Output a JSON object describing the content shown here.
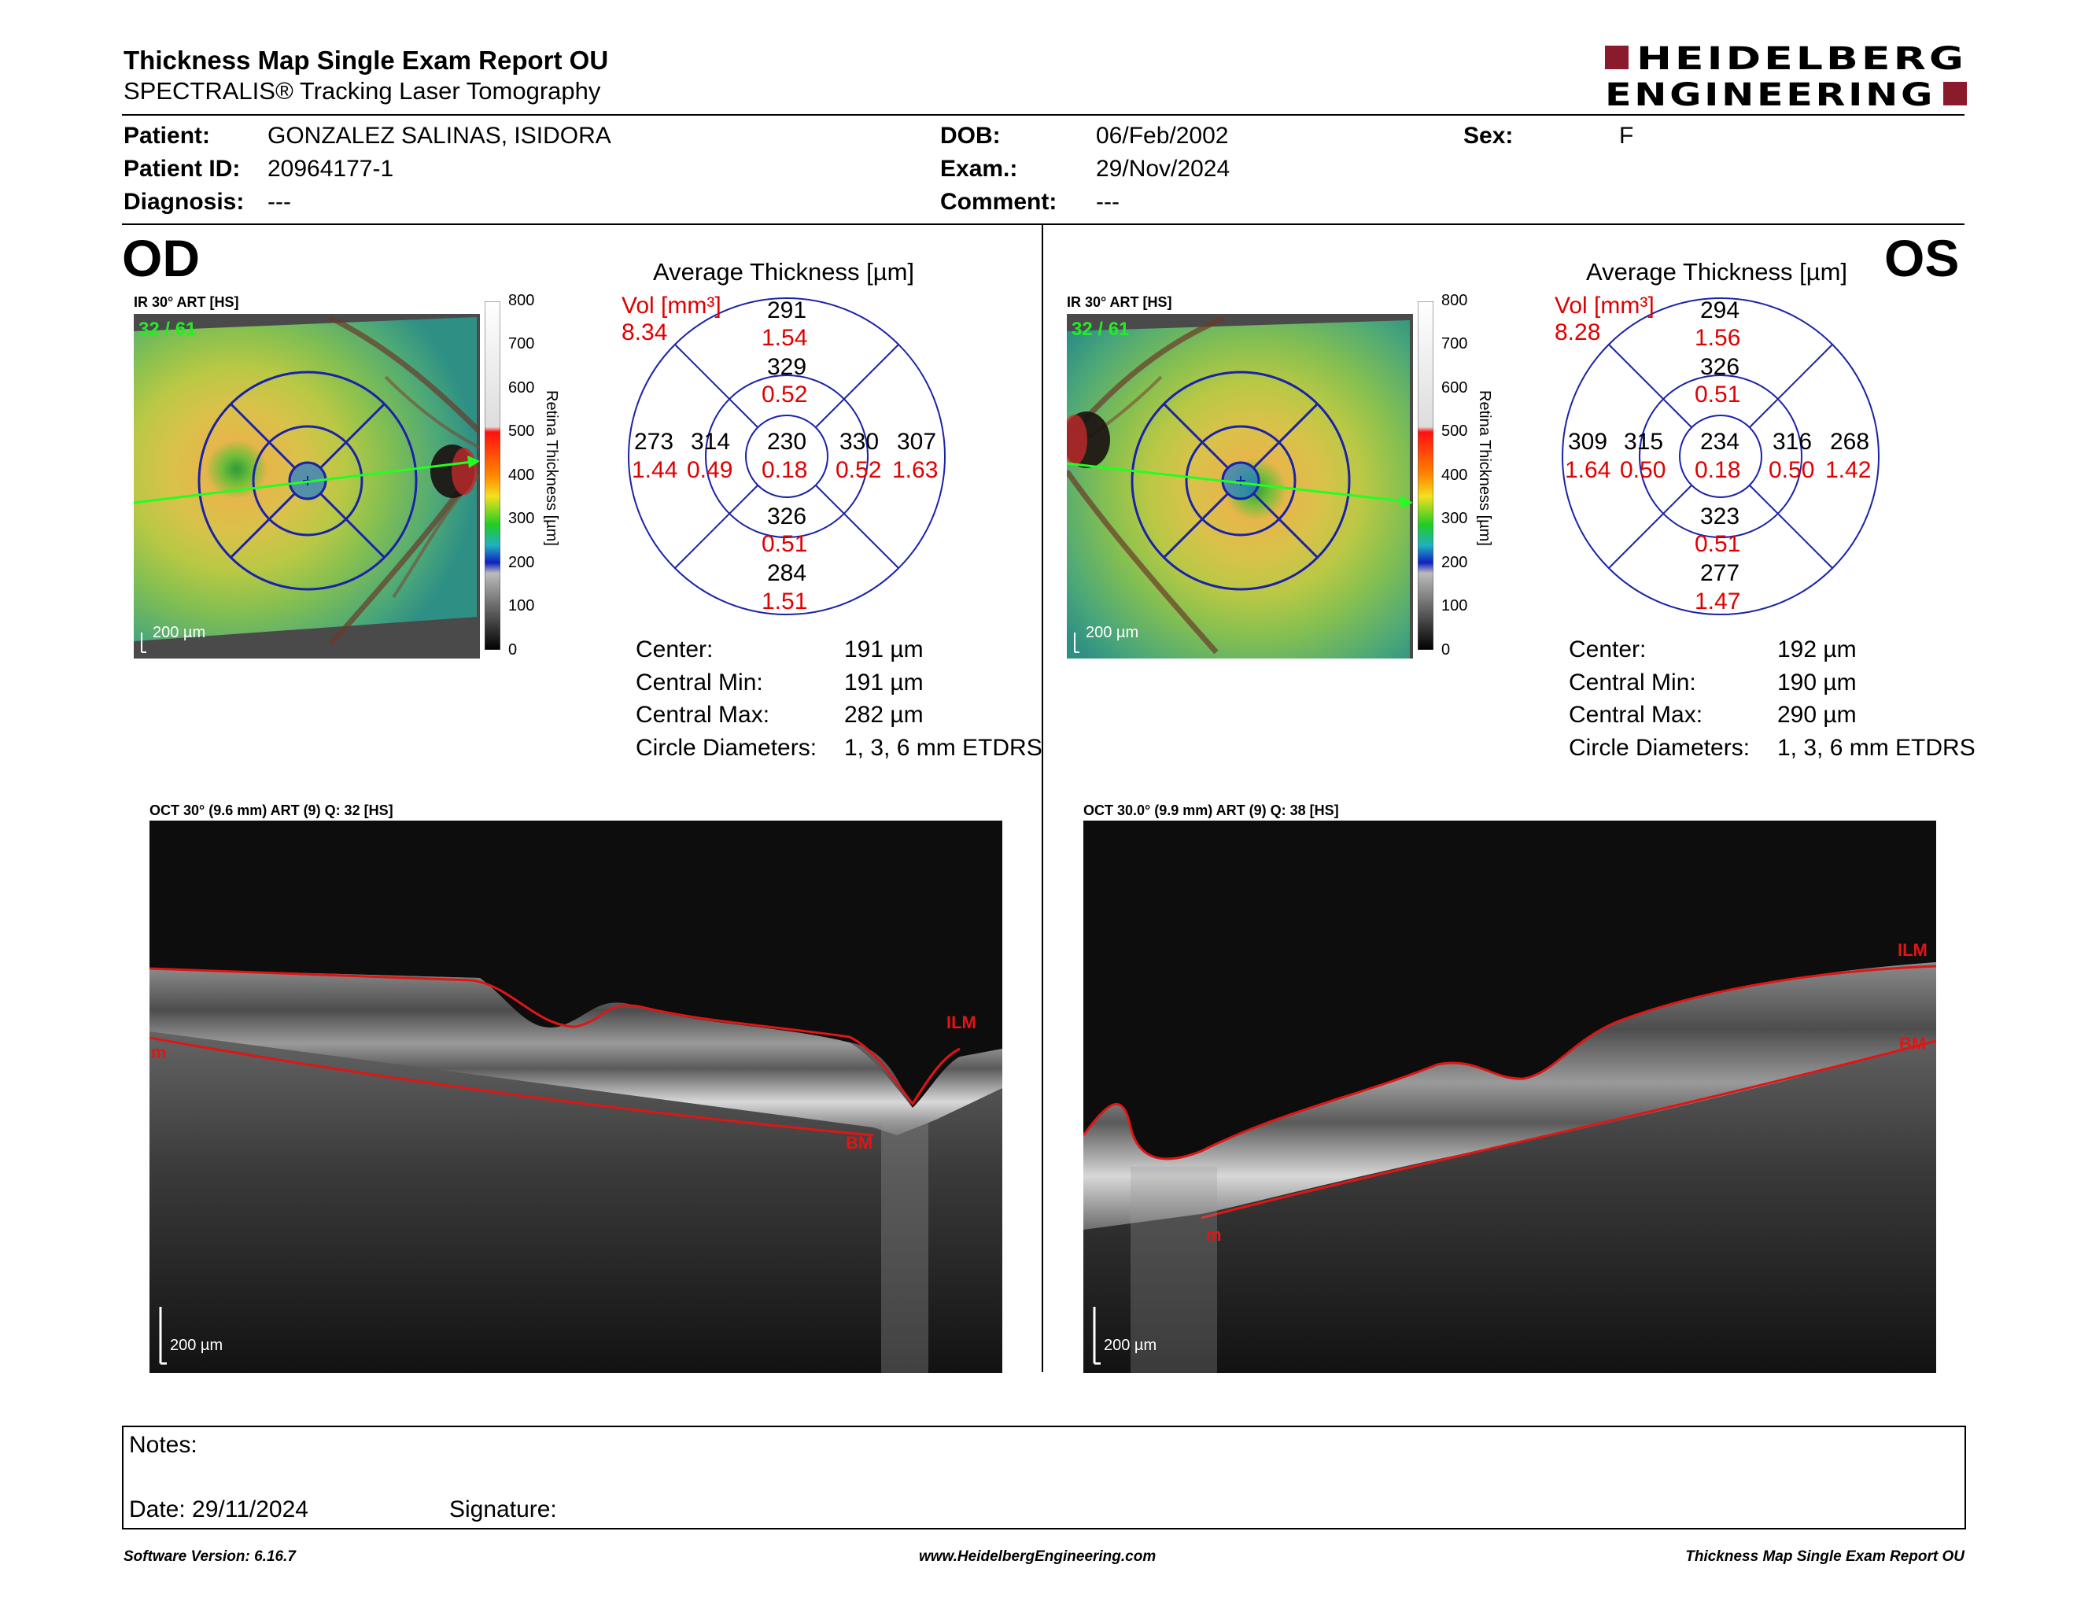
{
  "header": {
    "title": "Thickness Map Single Exam Report OU",
    "subtitle": "SPECTRALIS® Tracking Laser Tomography",
    "logo_line1": "HEIDELBERG",
    "logo_line2": "ENGINEERING",
    "brand_color": "#8b1a2c"
  },
  "patient": {
    "patient_label": "Patient:",
    "patient_value": "GONZALEZ SALINAS, ISIDORA",
    "id_label": "Patient ID:",
    "id_value": "20964177-1",
    "diagnosis_label": "Diagnosis:",
    "diagnosis_value": "---",
    "dob_label": "DOB:",
    "dob_value": "06/Feb/2002",
    "exam_label": "Exam.:",
    "exam_value": "29/Nov/2024",
    "comment_label": "Comment:",
    "comment_value": "---",
    "sex_label": "Sex:",
    "sex_value": "F"
  },
  "colorbar": {
    "ticks": [
      "800",
      "700",
      "600",
      "500",
      "400",
      "300",
      "200",
      "100",
      "0"
    ],
    "title": "Retina Thickness [µm]"
  },
  "od": {
    "eye": "OD",
    "ir_label": "IR 30° ART [HS]",
    "frames": "32 / 61",
    "scale": "200 µm",
    "avg_title": "Average Thickness [µm]",
    "vol_label": "Vol [mm³]",
    "vol_value": "8.34",
    "sectors": {
      "outer_sup": "291",
      "outer_sup_vol": "1.54",
      "inner_sup": "329",
      "inner_sup_vol": "0.52",
      "outer_left": "273",
      "outer_left_vol": "1.44",
      "inner_left": "314",
      "inner_left_vol": "0.49",
      "center": "230",
      "center_vol": "0.18",
      "inner_right": "330",
      "inner_right_vol": "0.52",
      "outer_right": "307",
      "outer_right_vol": "1.63",
      "inner_inf": "326",
      "inner_inf_vol": "0.51",
      "outer_inf": "284",
      "outer_inf_vol": "1.51"
    },
    "stats": {
      "center_label": "Center:",
      "center_value": "191 µm",
      "min_label": "Central Min:",
      "min_value": "191 µm",
      "max_label": "Central Max:",
      "max_value": "282 µm",
      "diam_label": "Circle Diameters:",
      "diam_value": "1, 3, 6 mm ETDRS"
    },
    "oct_label": "OCT 30° (9.6 mm) ART (9) Q: 32 [HS]",
    "oct_scale": "200 µm",
    "ilm": "ILM",
    "bm": "BM",
    "m": "m"
  },
  "os": {
    "eye": "OS",
    "ir_label": "IR 30° ART [HS]",
    "frames": "32 / 61",
    "scale": "200 µm",
    "avg_title": "Average Thickness [µm]",
    "vol_label": "Vol [mm³]",
    "vol_value": "8.28",
    "sectors": {
      "outer_sup": "294",
      "outer_sup_vol": "1.56",
      "inner_sup": "326",
      "inner_sup_vol": "0.51",
      "outer_left": "309",
      "outer_left_vol": "1.64",
      "inner_left": "315",
      "inner_left_vol": "0.50",
      "center": "234",
      "center_vol": "0.18",
      "inner_right": "316",
      "inner_right_vol": "0.50",
      "outer_right": "268",
      "outer_right_vol": "1.42",
      "inner_inf": "323",
      "inner_inf_vol": "0.51",
      "outer_inf": "277",
      "outer_inf_vol": "1.47"
    },
    "stats": {
      "center_label": "Center:",
      "center_value": "192 µm",
      "min_label": "Central Min:",
      "min_value": "190 µm",
      "max_label": "Central Max:",
      "max_value": "290 µm",
      "diam_label": "Circle Diameters:",
      "diam_value": "1, 3, 6 mm ETDRS"
    },
    "oct_label": "OCT 30.0° (9.9 mm) ART (9) Q: 38 [HS]",
    "oct_scale": "200 µm",
    "ilm": "ILM",
    "bm": "BM",
    "m": "m"
  },
  "notes": {
    "notes_label": "Notes:",
    "date_label": "Date: 29/11/2024",
    "signature_label": "Signature:"
  },
  "footer": {
    "software": "Software Version: 6.16.7",
    "website": "www.HeidelbergEngineering.com",
    "report": "Thickness Map Single Exam Report OU"
  }
}
